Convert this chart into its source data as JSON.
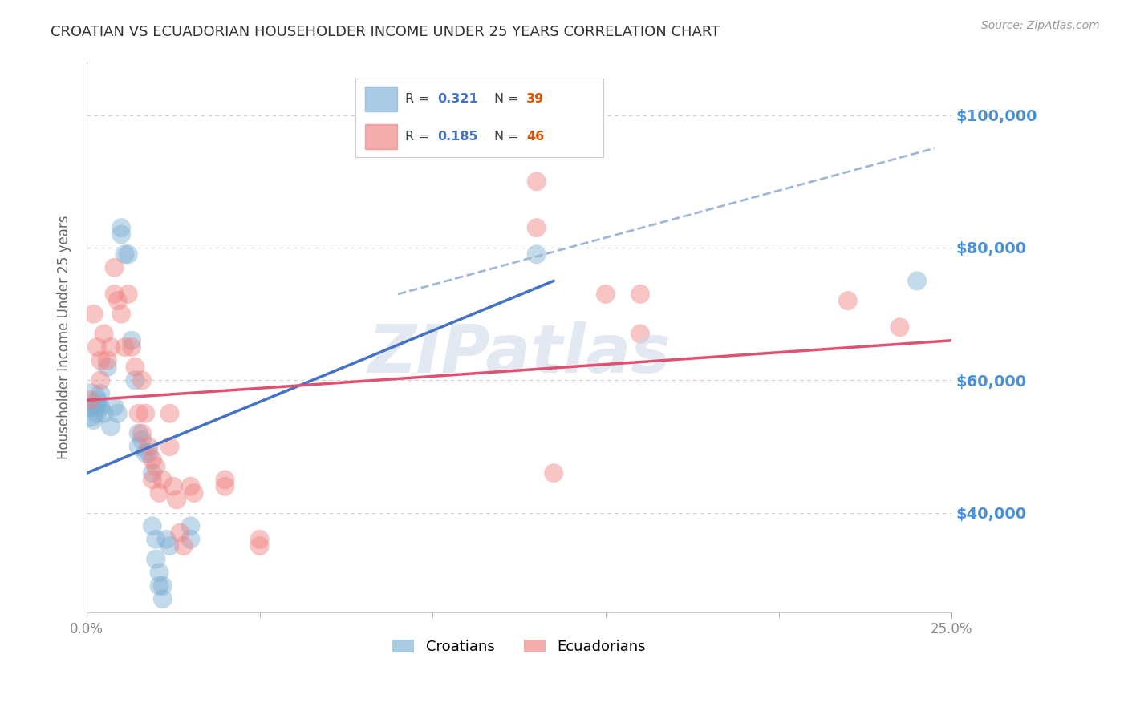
{
  "title": "CROATIAN VS ECUADORIAN HOUSEHOLDER INCOME UNDER 25 YEARS CORRELATION CHART",
  "source": "Source: ZipAtlas.com",
  "ylabel": "Householder Income Under 25 years",
  "ytick_labels": [
    "$40,000",
    "$60,000",
    "$80,000",
    "$100,000"
  ],
  "ytick_values": [
    40000,
    60000,
    80000,
    100000
  ],
  "xmin": 0.0,
  "xmax": 0.25,
  "ymin": 25000,
  "ymax": 108000,
  "croatian_color": "#7bafd4",
  "ecuadorian_color": "#f08080",
  "croatian_points": [
    [
      0.001,
      57000
    ],
    [
      0.001,
      55000
    ],
    [
      0.002,
      56000
    ],
    [
      0.002,
      54000
    ],
    [
      0.003,
      57000
    ],
    [
      0.003,
      55000
    ],
    [
      0.003,
      56000
    ],
    [
      0.004,
      58000
    ],
    [
      0.004,
      56000
    ],
    [
      0.005,
      55000
    ],
    [
      0.006,
      62000
    ],
    [
      0.007,
      53000
    ],
    [
      0.008,
      56000
    ],
    [
      0.009,
      55000
    ],
    [
      0.01,
      82000
    ],
    [
      0.01,
      83000
    ],
    [
      0.011,
      79000
    ],
    [
      0.012,
      79000
    ],
    [
      0.013,
      66000
    ],
    [
      0.014,
      60000
    ],
    [
      0.015,
      52000
    ],
    [
      0.015,
      50000
    ],
    [
      0.016,
      51000
    ],
    [
      0.017,
      49000
    ],
    [
      0.018,
      49000
    ],
    [
      0.019,
      46000
    ],
    [
      0.019,
      38000
    ],
    [
      0.02,
      36000
    ],
    [
      0.02,
      33000
    ],
    [
      0.021,
      31000
    ],
    [
      0.021,
      29000
    ],
    [
      0.022,
      27000
    ],
    [
      0.022,
      29000
    ],
    [
      0.023,
      36000
    ],
    [
      0.024,
      35000
    ],
    [
      0.03,
      38000
    ],
    [
      0.03,
      36000
    ],
    [
      0.13,
      79000
    ],
    [
      0.24,
      75000
    ]
  ],
  "ecuadorian_points": [
    [
      0.001,
      57000
    ],
    [
      0.002,
      70000
    ],
    [
      0.003,
      65000
    ],
    [
      0.004,
      63000
    ],
    [
      0.004,
      60000
    ],
    [
      0.005,
      67000
    ],
    [
      0.006,
      63000
    ],
    [
      0.007,
      65000
    ],
    [
      0.008,
      73000
    ],
    [
      0.008,
      77000
    ],
    [
      0.009,
      72000
    ],
    [
      0.01,
      70000
    ],
    [
      0.011,
      65000
    ],
    [
      0.012,
      73000
    ],
    [
      0.013,
      65000
    ],
    [
      0.014,
      62000
    ],
    [
      0.015,
      55000
    ],
    [
      0.016,
      60000
    ],
    [
      0.016,
      52000
    ],
    [
      0.017,
      55000
    ],
    [
      0.018,
      50000
    ],
    [
      0.019,
      48000
    ],
    [
      0.019,
      45000
    ],
    [
      0.02,
      47000
    ],
    [
      0.021,
      43000
    ],
    [
      0.022,
      45000
    ],
    [
      0.024,
      55000
    ],
    [
      0.024,
      50000
    ],
    [
      0.025,
      44000
    ],
    [
      0.026,
      42000
    ],
    [
      0.027,
      37000
    ],
    [
      0.028,
      35000
    ],
    [
      0.03,
      44000
    ],
    [
      0.031,
      43000
    ],
    [
      0.04,
      45000
    ],
    [
      0.04,
      44000
    ],
    [
      0.05,
      36000
    ],
    [
      0.05,
      35000
    ],
    [
      0.13,
      90000
    ],
    [
      0.13,
      83000
    ],
    [
      0.135,
      46000
    ],
    [
      0.15,
      73000
    ],
    [
      0.16,
      73000
    ],
    [
      0.16,
      67000
    ],
    [
      0.22,
      72000
    ],
    [
      0.235,
      68000
    ]
  ],
  "croatian_line_x": [
    0.0,
    0.135
  ],
  "croatian_line_y": [
    46000,
    75000
  ],
  "ecuadorian_line_x": [
    0.0,
    0.25
  ],
  "ecuadorian_line_y": [
    57000,
    66000
  ],
  "dashed_line_x": [
    0.09,
    0.245
  ],
  "dashed_line_y": [
    73000,
    95000
  ],
  "background_color": "#ffffff",
  "grid_color": "#cccccc",
  "title_color": "#333333",
  "ytick_color": "#4a90d9",
  "xtick_color": "#888888",
  "legend_r1": "0.321",
  "legend_n1": "39",
  "legend_r2": "0.185",
  "legend_n2": "46"
}
